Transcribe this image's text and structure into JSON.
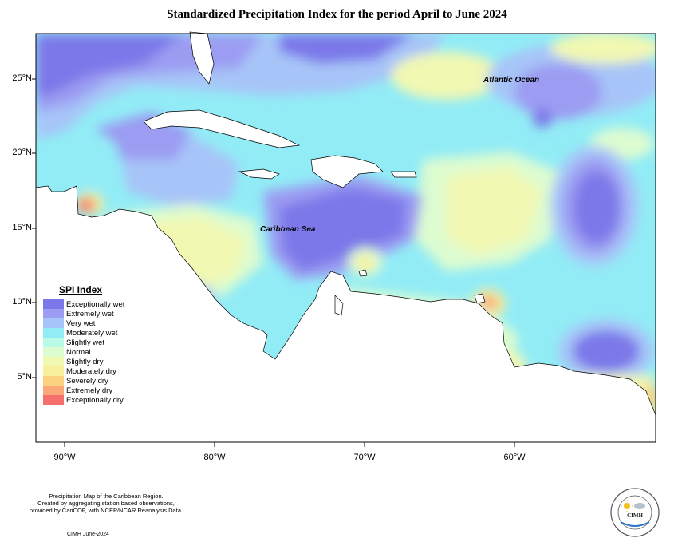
{
  "title": "Standardized Precipitation Index for the period April to June 2024",
  "axes": {
    "y_ticks": [
      "25°N",
      "20°N",
      "15°N",
      "10°N",
      "5°N"
    ],
    "x_ticks": [
      "90°W",
      "80°W",
      "70°W",
      "60°W"
    ]
  },
  "place_labels": {
    "atlantic": "Atlantic Ocean",
    "caribbean": "Caribbean Sea"
  },
  "legend": {
    "title": "SPI Index",
    "items": [
      {
        "label": "Exceptionally wet",
        "color": "#7b78e9"
      },
      {
        "label": "Extremely wet",
        "color": "#9b9cf2"
      },
      {
        "label": "Very wet",
        "color": "#a7c4f8"
      },
      {
        "label": "Moderately wet",
        "color": "#92ecf6"
      },
      {
        "label": "Slightly wet",
        "color": "#b9fbe6"
      },
      {
        "label": "Normal",
        "color": "#ddfcd0"
      },
      {
        "label": "Slightly dry",
        "color": "#f1f8b2"
      },
      {
        "label": "Moderately dry",
        "color": "#f8f09a"
      },
      {
        "label": "Severely dry",
        "color": "#fbd27f"
      },
      {
        "label": "Extremely dry",
        "color": "#fba777"
      },
      {
        "label": "Exceptionally dry",
        "color": "#f56f6c"
      }
    ]
  },
  "credits": {
    "line1": "Precipitation Map of the Caribbean Region.",
    "line2": "Created by aggregating station based observations,",
    "line3": "provided by CariCOF, with NCEP/NCAR Reanalysis Data.",
    "date": "CIMH June-2024"
  },
  "logo": {
    "text": "CIMH"
  }
}
